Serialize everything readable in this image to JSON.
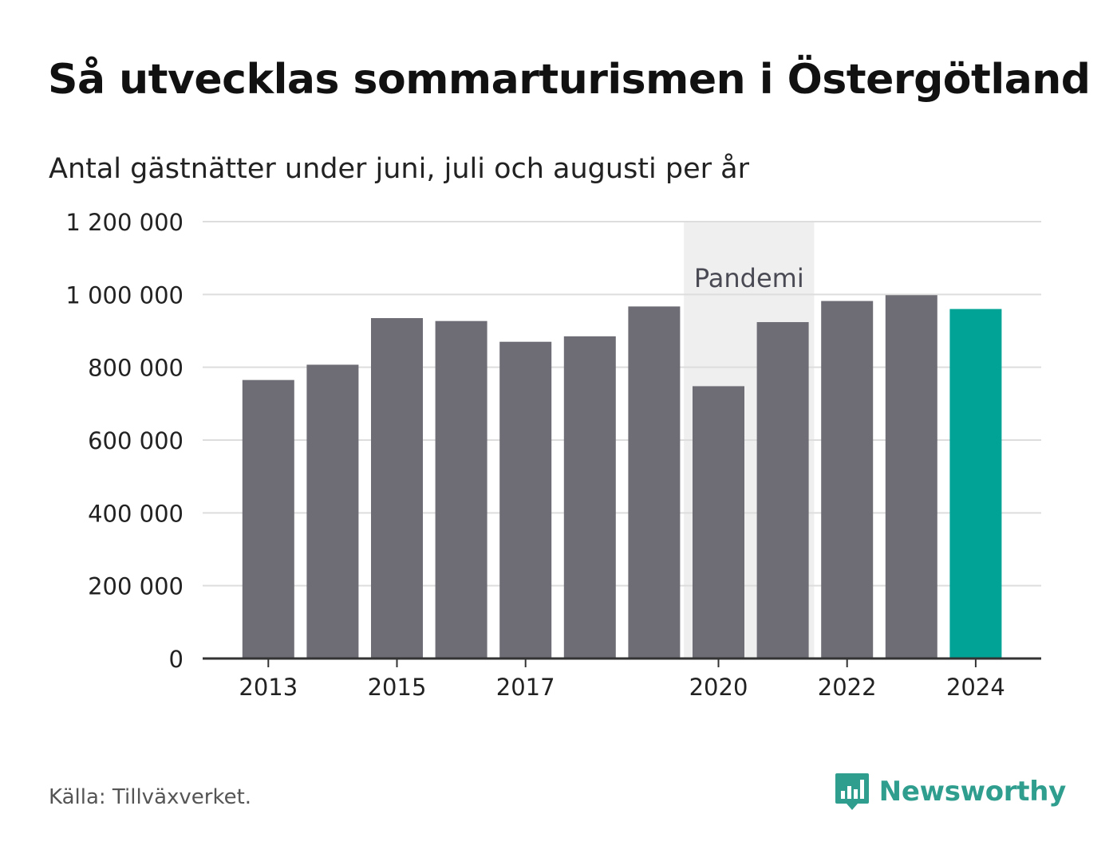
{
  "title": "Så utvecklas sommarturismen i Östergötland",
  "subtitle": "Antal gästnätter under juni, juli och augusti per år",
  "source": "Källa: Tillväxverket.",
  "brand": {
    "name": "Newsworthy",
    "icon": "newsworthy-logo-icon",
    "color": "#2f9e8f"
  },
  "colors": {
    "bar": "#6e6d75",
    "highlight": "#00a396",
    "band": "#efefef",
    "grid": "#dddddd",
    "axis": "#333333"
  },
  "chart_data": {
    "type": "bar",
    "categories": [
      "2013",
      "2014",
      "2015",
      "2016",
      "2017",
      "2018",
      "2019",
      "2020",
      "2021",
      "2022",
      "2023",
      "2024"
    ],
    "values": [
      765000,
      807000,
      935000,
      927000,
      870000,
      885000,
      967000,
      748000,
      924000,
      982000,
      998000,
      960000
    ],
    "x_tick_labels": [
      "2013",
      "2015",
      "2017",
      "2020",
      "2022",
      "2024"
    ],
    "y_ticks": [
      0,
      200000,
      400000,
      600000,
      800000,
      1000000,
      1200000
    ],
    "y_tick_labels": [
      "0",
      "200 000",
      "400 000",
      "600 000",
      "800 000",
      "1 000 000",
      "1 200 000"
    ],
    "ylim": [
      0,
      1200000
    ],
    "highlight_category": "2024",
    "annotation": {
      "label": "Pandemi",
      "from": "2020",
      "to": "2021"
    },
    "grid": true,
    "legend": "none",
    "xlabel": "",
    "ylabel": ""
  }
}
